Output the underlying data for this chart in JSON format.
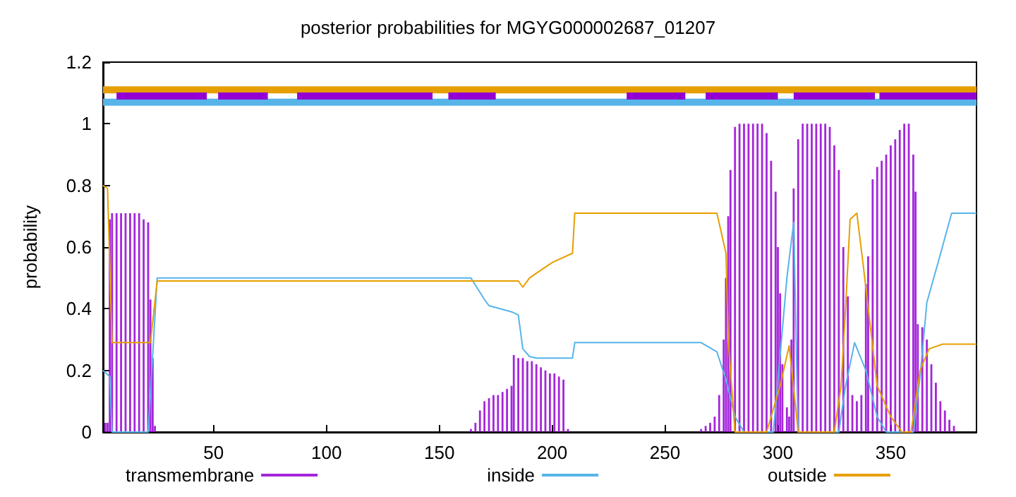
{
  "chart_data": {
    "type": "line",
    "title": "posterior probabilities for MGYG000002687_01207",
    "ylabel": "probability",
    "xlim": [
      1,
      388
    ],
    "xticks": [
      50,
      100,
      150,
      200,
      250,
      300,
      350
    ],
    "ylim": [
      0,
      1.2
    ],
    "yticks": [
      0,
      0.2,
      0.4,
      0.6,
      0.8,
      1,
      1.2
    ],
    "grid": false,
    "legend": "bottom",
    "marker": "none",
    "line_style": "solid",
    "series": [
      {
        "name": "transmembrane",
        "type": "bar",
        "color": "#9400d3",
        "x": [
          2,
          3,
          4,
          5,
          7,
          9,
          11,
          13,
          15,
          17,
          19,
          21,
          22,
          23,
          24,
          164,
          166,
          168,
          170,
          172,
          174,
          176,
          178,
          180,
          182,
          183,
          185,
          187,
          189,
          191,
          193,
          195,
          197,
          199,
          201,
          203,
          205,
          207,
          266,
          268,
          270,
          272,
          274,
          276,
          277,
          278,
          279,
          281,
          283,
          285,
          287,
          289,
          291,
          293,
          295,
          297,
          299,
          300,
          301,
          302,
          304,
          305,
          306,
          307,
          309,
          311,
          313,
          315,
          317,
          319,
          321,
          323,
          325,
          327,
          329,
          331,
          333,
          335,
          337,
          339,
          340,
          342,
          344,
          346,
          348,
          350,
          352,
          354,
          356,
          358,
          360,
          361,
          362,
          364,
          366,
          368,
          370,
          372,
          374,
          376,
          378
        ],
        "values": [
          0.03,
          0.03,
          0.69,
          0.71,
          0.71,
          0.71,
          0.71,
          0.71,
          0.71,
          0.71,
          0.69,
          0.68,
          0.43,
          0.24,
          0.02,
          0.01,
          0.03,
          0.07,
          0.1,
          0.11,
          0.12,
          0.12,
          0.13,
          0.14,
          0.15,
          0.25,
          0.24,
          0.24,
          0.23,
          0.23,
          0.22,
          0.21,
          0.2,
          0.19,
          0.19,
          0.18,
          0.17,
          0.01,
          0.01,
          0.02,
          0.03,
          0.05,
          0.12,
          0.3,
          0.5,
          0.7,
          0.85,
          0.99,
          1,
          1,
          1,
          1,
          1,
          1,
          0.97,
          0.88,
          0.78,
          0.6,
          0.45,
          0.22,
          0.08,
          0.05,
          0.3,
          0.79,
          0.95,
          1,
          1,
          1,
          1,
          1,
          1,
          0.99,
          0.93,
          0.85,
          0.6,
          0.44,
          0.12,
          0.1,
          0.12,
          0.48,
          0.57,
          0.82,
          0.86,
          0.88,
          0.9,
          0.93,
          0.95,
          0.98,
          1,
          1,
          0.9,
          0.78,
          0.35,
          0.34,
          0.3,
          0.22,
          0.16,
          0.1,
          0.07,
          0.04,
          0.02
        ]
      },
      {
        "name": "inside",
        "color": "#56b4e9",
        "x": [
          1,
          4,
          5,
          21,
          23,
          25,
          164,
          170,
          172,
          182,
          185,
          187,
          190,
          193,
          209,
          210,
          266,
          273,
          277,
          281,
          285,
          298,
          301,
          304,
          307,
          309,
          327,
          330,
          334,
          339,
          344,
          348,
          360,
          363,
          366,
          371,
          377,
          388
        ],
        "values": [
          0.2,
          0.18,
          0,
          0,
          0.25,
          0.5,
          0.5,
          0.43,
          0.41,
          0.39,
          0.38,
          0.27,
          0.245,
          0.24,
          0.24,
          0.29,
          0.29,
          0.26,
          0.17,
          0.05,
          0,
          0,
          0.25,
          0.5,
          0.68,
          0,
          0,
          0.15,
          0.29,
          0.2,
          0.05,
          0,
          0,
          0.18,
          0.42,
          0.55,
          0.71,
          0.71
        ]
      },
      {
        "name": "outside",
        "color": "#e69f00",
        "x": [
          1,
          3,
          5,
          22,
          25,
          185,
          187,
          190,
          194,
          200,
          209,
          210,
          273,
          277,
          278,
          281,
          295,
          299,
          301,
          305,
          309,
          325,
          328,
          330,
          332,
          335,
          338,
          344,
          350,
          355,
          359,
          363,
          367,
          373,
          388
        ],
        "values": [
          0.8,
          0.79,
          0.29,
          0.29,
          0.49,
          0.49,
          0.47,
          0.5,
          0.52,
          0.55,
          0.58,
          0.71,
          0.71,
          0.58,
          0.3,
          0,
          0,
          0.1,
          0.15,
          0.28,
          0,
          0,
          0.15,
          0.4,
          0.69,
          0.71,
          0.53,
          0.15,
          0.05,
          0,
          0,
          0.2,
          0.27,
          0.285,
          0.285
        ]
      },
      {
        "color": "#e69f00",
        "x": [
          1,
          388
        ],
        "values": [
          1.11,
          1.11
        ]
      },
      {
        "color": "#56b4e9",
        "x": [
          1,
          388
        ],
        "values": [
          1.07,
          1.07
        ]
      },
      {
        "color": "#9400d3",
        "x": [
          7,
          47,
          49,
          52,
          74,
          80,
          87,
          147,
          150,
          154,
          175,
          200,
          233,
          259,
          263,
          268,
          300,
          303,
          307,
          343,
          344,
          345,
          388
        ],
        "values": [
          1.09,
          1.09,
          null,
          1.09,
          1.09,
          null,
          1.09,
          1.09,
          null,
          1.09,
          1.09,
          null,
          1.09,
          1.09,
          null,
          1.09,
          1.09,
          null,
          1.09,
          1.09,
          null,
          1.09,
          1.09
        ]
      }
    ]
  }
}
